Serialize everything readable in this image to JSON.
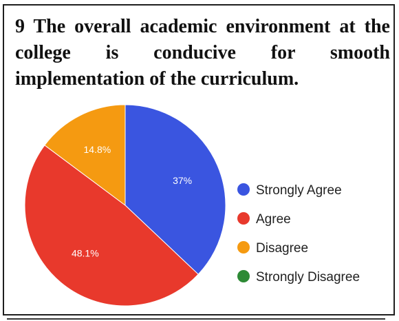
{
  "question": "9 The overall academic environment at the college is conducive for smooth implementation of the curriculum.",
  "chart_data": {
    "type": "pie",
    "categories": [
      "Strongly Agree",
      "Agree",
      "Disagree",
      "Strongly Disagree"
    ],
    "values": [
      37,
      48.1,
      14.8,
      0
    ],
    "labels": [
      "37%",
      "48.1%",
      "14.8%",
      ""
    ],
    "colors": [
      "#3a55e0",
      "#e8392c",
      "#f59a11",
      "#2d8a35"
    ],
    "legend": {
      "position": "right",
      "entries": [
        "Strongly Agree",
        "Agree",
        "Disagree",
        "Strongly Disagree"
      ]
    },
    "start_angle_deg": 90,
    "direction": "clockwise"
  }
}
